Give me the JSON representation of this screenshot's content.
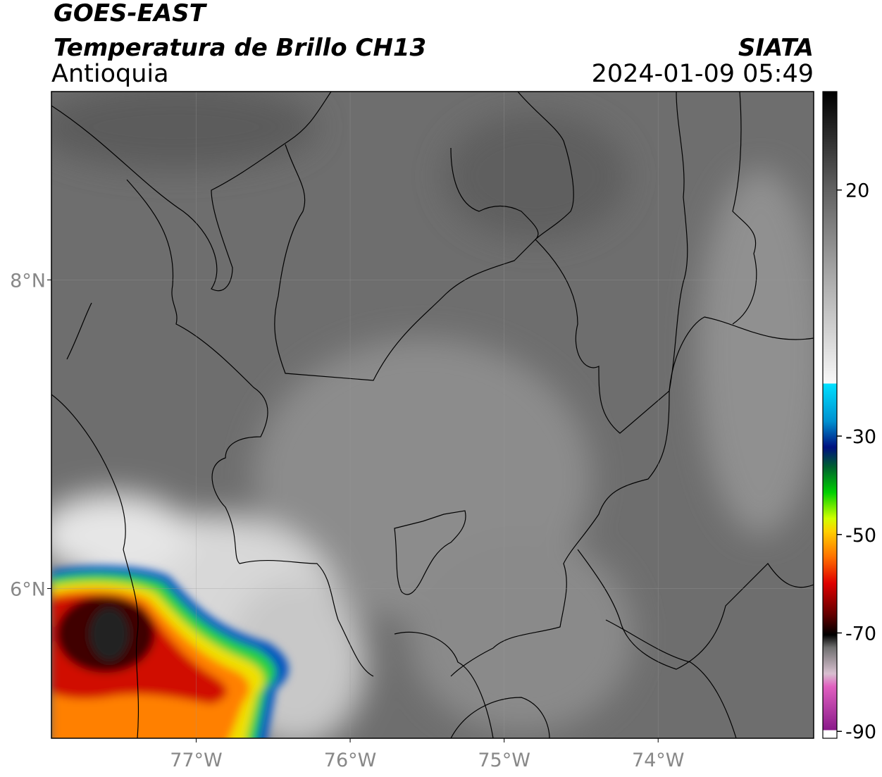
{
  "header": {
    "satellite": "GOES-EAST",
    "product": "Temperatura de Brillo CH13",
    "region": "Antioquia",
    "agency": "SIATA",
    "datetime": "2024-01-09 05:49"
  },
  "map": {
    "xlim": [
      -77.94,
      -72.99
    ],
    "ylim": [
      5.03,
      9.22
    ],
    "xticks": [
      {
        "value": -77,
        "label": "77°W"
      },
      {
        "value": -76,
        "label": "76°W"
      },
      {
        "value": -75,
        "label": "75°W"
      },
      {
        "value": -74,
        "label": "74°W"
      }
    ],
    "yticks": [
      {
        "value": 8,
        "label": "8°N"
      },
      {
        "value": 6,
        "label": "6°N"
      }
    ]
  },
  "colorbar": {
    "lim": [
      -91.4,
      40
    ],
    "ticks": [
      20,
      -30,
      -50,
      -70,
      -90
    ]
  }
}
